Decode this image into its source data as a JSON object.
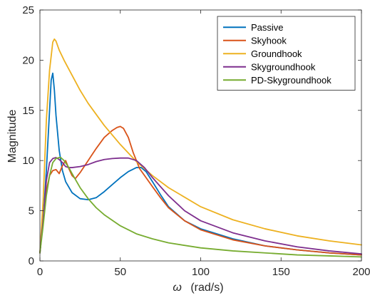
{
  "chart_data": {
    "type": "line",
    "title": "",
    "xlabel_symbol": "ω",
    "xlabel_unit": "(rad/s)",
    "ylabel": "Magnitude",
    "xlim": [
      0,
      200
    ],
    "ylim": [
      0,
      25
    ],
    "xticks": [
      0,
      50,
      100,
      150,
      200
    ],
    "yticks": [
      0,
      5,
      10,
      15,
      20,
      25
    ],
    "grid": false,
    "legend_position": "top-right",
    "series": [
      {
        "name": "Passive",
        "color": "#0072BD",
        "x": [
          0,
          2,
          4,
          6,
          7,
          8,
          9,
          10,
          12,
          14,
          16,
          20,
          25,
          30,
          35,
          40,
          45,
          50,
          55,
          60,
          63,
          66,
          70,
          75,
          80,
          90,
          100,
          120,
          140,
          160,
          180,
          200
        ],
        "y": [
          0.8,
          4,
          9,
          15,
          18,
          18.7,
          17,
          14.5,
          11,
          9,
          7.9,
          6.8,
          6.2,
          6.1,
          6.3,
          6.9,
          7.6,
          8.3,
          8.9,
          9.3,
          9.3,
          8.9,
          7.9,
          6.6,
          5.4,
          4.0,
          3.2,
          2.2,
          1.5,
          1.1,
          0.8,
          0.6
        ]
      },
      {
        "name": "Skyhook",
        "color": "#D95319",
        "x": [
          0,
          2,
          4,
          6,
          8,
          10,
          12,
          14,
          16,
          18,
          20,
          22,
          25,
          30,
          35,
          40,
          45,
          48,
          50,
          52,
          55,
          58,
          62,
          66,
          70,
          75,
          80,
          90,
          100,
          120,
          140,
          160,
          180,
          200
        ],
        "y": [
          0.8,
          4,
          7,
          8.5,
          9,
          9.1,
          8.7,
          9.5,
          10,
          9.2,
          8.5,
          8.2,
          8.8,
          10,
          11.2,
          12.3,
          13.0,
          13.3,
          13.4,
          13.2,
          12.3,
          10.8,
          9.2,
          8.3,
          7.4,
          6.3,
          5.3,
          4.0,
          3.1,
          2.1,
          1.5,
          1.1,
          0.8,
          0.6
        ]
      },
      {
        "name": "Groundhook",
        "color": "#EDB120",
        "x": [
          0,
          2,
          4,
          6,
          8,
          9,
          10,
          12,
          15,
          20,
          25,
          30,
          40,
          50,
          60,
          70,
          80,
          100,
          120,
          140,
          160,
          180,
          200
        ],
        "y": [
          0.8,
          6,
          14,
          19,
          21.8,
          22.1,
          21.9,
          21,
          20,
          18.5,
          17,
          15.7,
          13.5,
          11.6,
          9.9,
          8.5,
          7.3,
          5.4,
          4.1,
          3.2,
          2.5,
          2.0,
          1.6
        ]
      },
      {
        "name": "Skygroundhook",
        "color": "#7E2F8E",
        "x": [
          0,
          2,
          4,
          6,
          8,
          10,
          12,
          14,
          16,
          18,
          20,
          25,
          30,
          35,
          40,
          45,
          50,
          55,
          60,
          65,
          70,
          80,
          90,
          100,
          120,
          140,
          160,
          180,
          200
        ],
        "y": [
          0.8,
          4,
          8,
          9.8,
          10.2,
          10.3,
          10.1,
          9.8,
          9.4,
          9.3,
          9.3,
          9.4,
          9.6,
          9.9,
          10.1,
          10.2,
          10.25,
          10.25,
          10.0,
          9.3,
          8.3,
          6.5,
          5.0,
          4.0,
          2.8,
          2.0,
          1.4,
          1.0,
          0.7
        ]
      },
      {
        "name": "PD-Skygroundhook",
        "color": "#77AC30",
        "x": [
          0,
          2,
          4,
          6,
          8,
          10,
          12,
          13,
          15,
          18,
          20,
          25,
          30,
          35,
          40,
          50,
          60,
          70,
          80,
          100,
          120,
          140,
          160,
          180,
          200
        ],
        "y": [
          0.8,
          3.5,
          6.5,
          8.5,
          9.8,
          10.2,
          10.3,
          10.3,
          10,
          9.3,
          8.7,
          7.3,
          6.2,
          5.3,
          4.6,
          3.5,
          2.7,
          2.2,
          1.8,
          1.3,
          1.0,
          0.8,
          0.6,
          0.5,
          0.4
        ]
      }
    ]
  }
}
